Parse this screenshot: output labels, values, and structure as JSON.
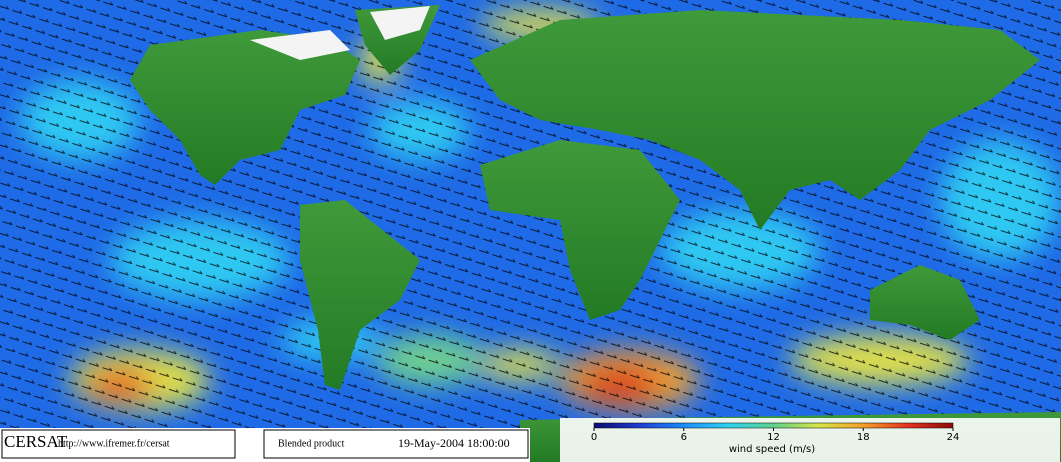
{
  "footer": {
    "logo": "CERSAT",
    "url": "http://www.ifremer.fr/cersat",
    "product": "Blended product",
    "timestamp": "19-May-2004 18:00:00"
  },
  "colorbar": {
    "label": "wind speed (m/s)",
    "lim": [
      0,
      24
    ],
    "ticks": [
      0,
      6,
      12,
      18,
      24
    ],
    "colors": [
      "#0a0a6e",
      "#1e3cd2",
      "#1e8cff",
      "#2ed2f0",
      "#5fd28c",
      "#d7e646",
      "#f5a028",
      "#e6321e",
      "#8c0a0a"
    ]
  }
}
